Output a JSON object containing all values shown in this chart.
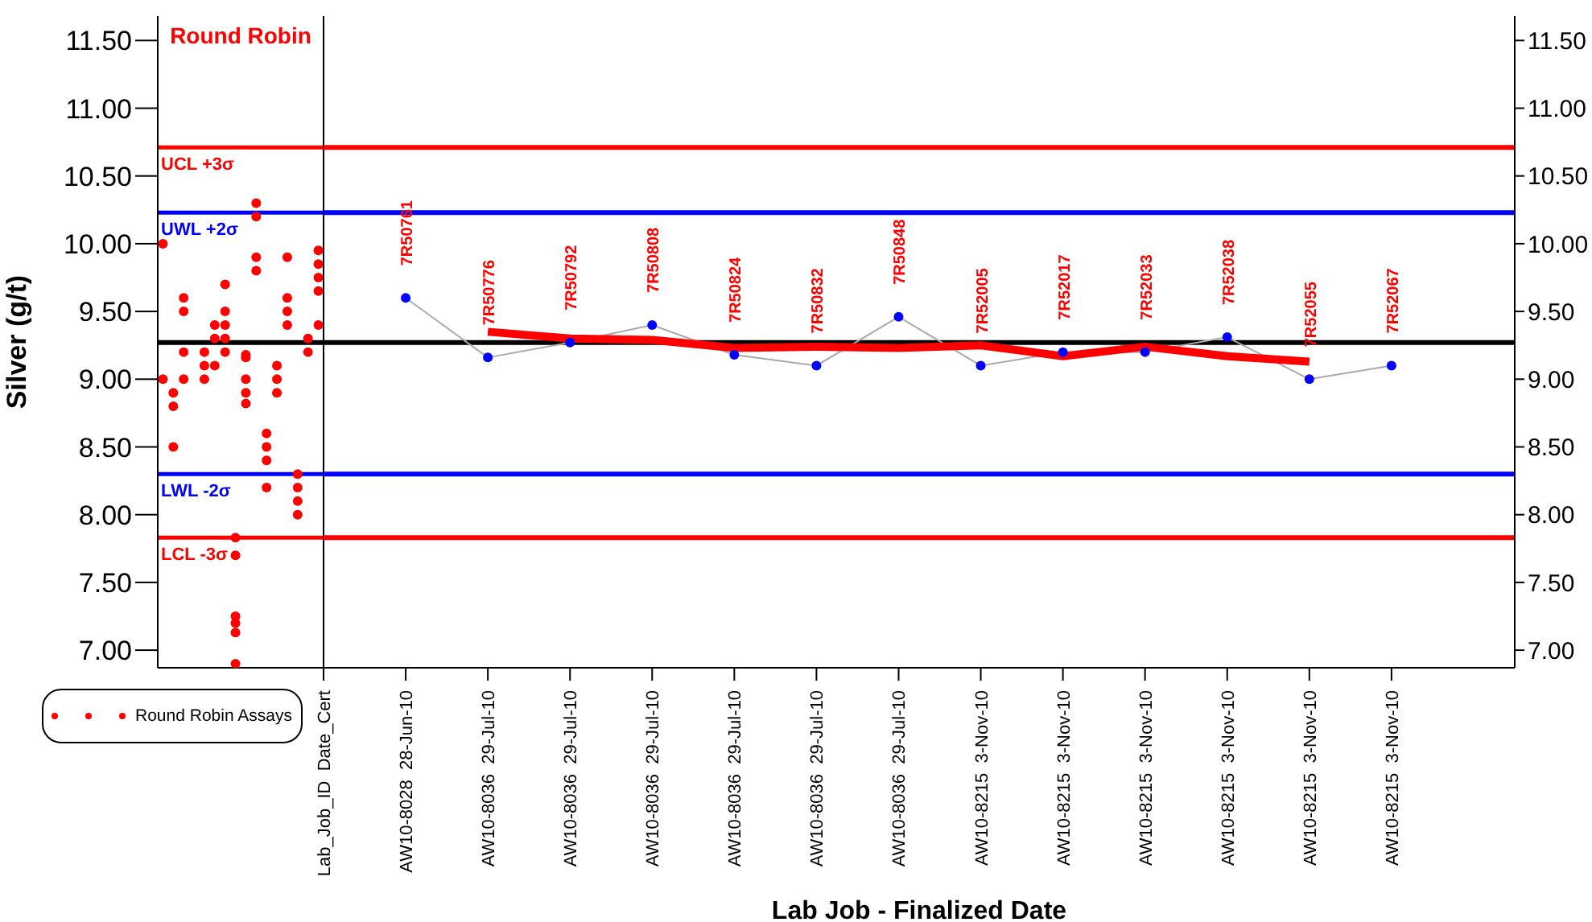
{
  "chart_data": [
    {
      "type": "scatter",
      "title": "Round Robin",
      "ylabel": "Silver (g/t)",
      "categories": [
        null,
        null,
        null,
        null,
        null,
        null,
        null,
        null,
        null,
        null,
        null,
        null,
        null,
        null,
        null,
        null
      ],
      "series": [
        {
          "name": "Round Robin Assays",
          "color": "#ff0000",
          "values": [
            10,
            8.9,
            9.6,
            null,
            9.2,
            9.4,
            9.7,
            7.83,
            9.18,
            10.3,
            8.6,
            9.1,
            9.9,
            8.3,
            9.3,
            9.95
          ]
        },
        {
          "color": "#ff0000",
          "values": [
            9,
            8.8,
            9.5,
            null,
            9.1,
            9.3,
            9.5,
            7.7,
            9.16,
            10.2,
            8.5,
            9,
            9.6,
            8.2,
            9.2,
            9.85
          ]
        },
        {
          "color": "#ff0000",
          "values": [
            null,
            8.5,
            9.2,
            null,
            9,
            9.1,
            9.4,
            7.25,
            9,
            9.9,
            8.4,
            8.9,
            9.5,
            8.1,
            null,
            9.75
          ]
        },
        {
          "color": "#ff0000",
          "values": [
            null,
            null,
            9,
            null,
            null,
            null,
            9.3,
            7.2,
            8.9,
            9.8,
            8.2,
            null,
            9.4,
            8,
            null,
            9.65
          ]
        },
        {
          "color": "#ff0000",
          "values": [
            null,
            null,
            null,
            null,
            null,
            null,
            9.2,
            7.13,
            8.82,
            null,
            null,
            null,
            null,
            null,
            null,
            9.4
          ]
        },
        {
          "color": "#ff0000",
          "values": [
            null,
            null,
            null,
            null,
            null,
            null,
            null,
            6.9,
            null,
            null,
            null,
            null,
            null,
            null,
            null,
            null
          ]
        }
      ],
      "ylim": [
        6.87,
        11.68
      ],
      "yticks": [
        {
          "value": 7,
          "label": "7.00"
        },
        {
          "value": 7.5,
          "label": "7.50"
        },
        {
          "value": 8,
          "label": "8.00"
        },
        {
          "value": 8.5,
          "label": "8.50"
        },
        {
          "value": 9,
          "label": "9.00"
        },
        {
          "value": 9.5,
          "label": "9.50"
        },
        {
          "value": 10,
          "label": "10.00"
        },
        {
          "value": 10.5,
          "label": "10.50"
        },
        {
          "value": 11,
          "label": "11.00"
        },
        {
          "value": 11.5,
          "label": "11.50"
        }
      ],
      "tick_labels": "y",
      "marker": "circle",
      "legend": "bottom left",
      "ref_lines": [
        {
          "axis": "y",
          "value": 10.71,
          "label": "UCL +3σ",
          "color": "#ff0000"
        },
        {
          "axis": "y",
          "value": 10.23,
          "label": "UWL +2σ",
          "color": "#0000ff"
        },
        {
          "axis": "y",
          "value": 9.27,
          "color": "#000000"
        },
        {
          "axis": "y",
          "value": 8.3,
          "label": "LWL -2σ",
          "color": "#0000ff"
        },
        {
          "axis": "y",
          "value": 7.83,
          "label": "LCL -3σ",
          "color": "#ff0000"
        }
      ]
    },
    {
      "type": "line",
      "xlabel": "Lab Job - Finalized Date",
      "categories": [
        "Lab_Job_ID  Date_Cert",
        "AW10-8028  28-Jun-10",
        "AW10-8036  29-Jul-10",
        "AW10-8036  29-Jul-10",
        "AW10-8036  29-Jul-10",
        "AW10-8036  29-Jul-10",
        "AW10-8036  29-Jul-10",
        "AW10-8036  29-Jul-10",
        "AW10-8215  3-Nov-10",
        "AW10-8215  3-Nov-10",
        "AW10-8215  3-Nov-10",
        "AW10-8215  3-Nov-10",
        "AW10-8215  3-Nov-10",
        "AW10-8215  3-Nov-10"
      ],
      "series": [
        {
          "type": "line",
          "marker": "circle",
          "color": "#0000ff",
          "values": [
            null,
            9.6,
            9.16,
            9.27,
            9.4,
            9.18,
            9.1,
            9.46,
            9.1,
            9.2,
            9.2,
            9.31,
            9,
            9.1
          ]
        },
        {
          "type": "line",
          "marker": "none",
          "color": "#ff0000",
          "values": [
            null,
            null,
            9.35,
            9.3,
            9.29,
            9.23,
            9.24,
            9.23,
            9.25,
            9.17,
            9.24,
            9.17,
            9.13,
            null
          ]
        }
      ],
      "annotations": [
        {
          "text": "7R50761",
          "y": 9.6
        },
        {
          "text": "7R50776",
          "y": 9.16
        },
        {
          "text": "7R50792",
          "y": 9.27
        },
        {
          "text": "7R50808",
          "y": 9.4
        },
        {
          "text": "7R50824",
          "y": 9.18
        },
        {
          "text": "7R50832",
          "y": 9.1
        },
        {
          "text": "7R50848",
          "y": 9.46
        },
        {
          "text": "7R52005",
          "y": 9.1
        },
        {
          "text": "7R52017",
          "y": 9.2
        },
        {
          "text": "7R52033",
          "y": 9.2
        },
        {
          "text": "7R52038",
          "y": 9.31
        },
        {
          "text": "7R52055",
          "y": 9
        },
        {
          "text": "7R52067",
          "y": 9.1
        }
      ],
      "ylim": [
        6.87,
        11.68
      ],
      "yticks": [
        {
          "value": 7,
          "label": "7.00"
        },
        {
          "value": 7.5,
          "label": "7.50"
        },
        {
          "value": 8,
          "label": "8.00"
        },
        {
          "value": 8.5,
          "label": "8.50"
        },
        {
          "value": 9,
          "label": "9.00"
        },
        {
          "value": 9.5,
          "label": "9.50"
        },
        {
          "value": 10,
          "label": "10.00"
        },
        {
          "value": 10.5,
          "label": "10.50"
        },
        {
          "value": 11,
          "label": "11.00"
        },
        {
          "value": 11.5,
          "label": "11.50"
        }
      ],
      "ref_lines": [
        {
          "axis": "y",
          "value": 10.71,
          "color": "#ff0000"
        },
        {
          "axis": "y",
          "value": 10.23,
          "color": "#0000ff"
        },
        {
          "axis": "y",
          "value": 9.27,
          "color": "#000000"
        },
        {
          "axis": "y",
          "value": 8.3,
          "color": "#0000ff"
        },
        {
          "axis": "y",
          "value": 7.83,
          "color": "#ff0000"
        }
      ]
    }
  ]
}
